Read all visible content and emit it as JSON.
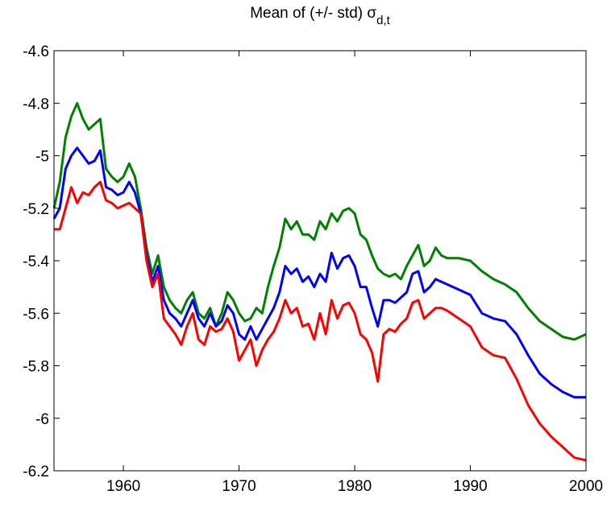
{
  "chart_data": {
    "type": "line",
    "title": "Mean of (+/- std) σ",
    "title_subscript": "d,t",
    "xlim": [
      1954,
      2000
    ],
    "ylim": [
      -6.2,
      -4.6
    ],
    "xticks": [
      1960,
      1970,
      1980,
      1990,
      2000
    ],
    "yticks": [
      -4.6,
      -4.8,
      -5,
      -5.2,
      -5.4,
      -5.6,
      -5.8,
      -6,
      -6.2
    ],
    "x": [
      1954,
      1954.5,
      1955,
      1955.5,
      1956,
      1956.5,
      1957,
      1957.5,
      1958,
      1958.5,
      1959,
      1959.5,
      1960,
      1960.5,
      1961,
      1961.5,
      1962,
      1962.5,
      1963,
      1963.5,
      1964,
      1964.5,
      1965,
      1965.5,
      1966,
      1966.5,
      1967,
      1967.5,
      1968,
      1968.5,
      1969,
      1969.5,
      1970,
      1970.5,
      1971,
      1971.5,
      1972,
      1972.5,
      1973,
      1973.5,
      1974,
      1974.5,
      1975,
      1975.5,
      1976,
      1976.5,
      1977,
      1977.5,
      1978,
      1978.5,
      1979,
      1979.5,
      1980,
      1980.5,
      1981,
      1981.5,
      1982,
      1982.5,
      1983,
      1983.5,
      1984,
      1984.5,
      1985,
      1985.5,
      1986,
      1986.5,
      1987,
      1987.5,
      1988,
      1989,
      1990,
      1991,
      1992,
      1993,
      1994,
      1995,
      1996,
      1997,
      1998,
      1999,
      2000
    ],
    "series": [
      {
        "color": "#008000",
        "values": [
          -5.2,
          -5.1,
          -4.93,
          -4.85,
          -4.8,
          -4.86,
          -4.9,
          -4.88,
          -4.86,
          -5.05,
          -5.08,
          -5.1,
          -5.08,
          -5.03,
          -5.08,
          -5.2,
          -5.35,
          -5.45,
          -5.38,
          -5.5,
          -5.55,
          -5.58,
          -5.6,
          -5.55,
          -5.52,
          -5.6,
          -5.62,
          -5.58,
          -5.65,
          -5.6,
          -5.52,
          -5.55,
          -5.6,
          -5.63,
          -5.62,
          -5.58,
          -5.6,
          -5.5,
          -5.42,
          -5.35,
          -5.24,
          -5.28,
          -5.25,
          -5.3,
          -5.3,
          -5.32,
          -5.25,
          -5.28,
          -5.22,
          -5.25,
          -5.21,
          -5.2,
          -5.22,
          -5.3,
          -5.32,
          -5.38,
          -5.43,
          -5.45,
          -5.46,
          -5.45,
          -5.47,
          -5.42,
          -5.38,
          -5.34,
          -5.42,
          -5.4,
          -5.35,
          -5.38,
          -5.39,
          -5.39,
          -5.4,
          -5.44,
          -5.47,
          -5.49,
          -5.52,
          -5.58,
          -5.63,
          -5.66,
          -5.69,
          -5.7,
          -5.68
        ]
      },
      {
        "color": "#0000ff",
        "values": [
          -5.24,
          -5.2,
          -5.05,
          -5.0,
          -4.97,
          -5.0,
          -5.03,
          -5.02,
          -4.98,
          -5.12,
          -5.13,
          -5.15,
          -5.14,
          -5.1,
          -5.14,
          -5.22,
          -5.38,
          -5.48,
          -5.42,
          -5.55,
          -5.6,
          -5.62,
          -5.65,
          -5.6,
          -5.55,
          -5.62,
          -5.65,
          -5.6,
          -5.65,
          -5.63,
          -5.57,
          -5.6,
          -5.68,
          -5.7,
          -5.65,
          -5.7,
          -5.66,
          -5.62,
          -5.58,
          -5.52,
          -5.42,
          -5.45,
          -5.43,
          -5.48,
          -5.46,
          -5.5,
          -5.45,
          -5.48,
          -5.37,
          -5.43,
          -5.39,
          -5.38,
          -5.42,
          -5.5,
          -5.5,
          -5.58,
          -5.65,
          -5.55,
          -5.55,
          -5.56,
          -5.54,
          -5.52,
          -5.45,
          -5.44,
          -5.52,
          -5.5,
          -5.47,
          -5.48,
          -5.49,
          -5.51,
          -5.53,
          -5.6,
          -5.62,
          -5.63,
          -5.68,
          -5.76,
          -5.83,
          -5.87,
          -5.9,
          -5.92,
          -5.92
        ]
      },
      {
        "color": "#ff0000",
        "values": [
          -5.28,
          -5.28,
          -5.2,
          -5.12,
          -5.18,
          -5.14,
          -5.15,
          -5.12,
          -5.1,
          -5.17,
          -5.18,
          -5.2,
          -5.19,
          -5.18,
          -5.2,
          -5.22,
          -5.4,
          -5.5,
          -5.45,
          -5.62,
          -5.65,
          -5.68,
          -5.72,
          -5.65,
          -5.6,
          -5.7,
          -5.72,
          -5.65,
          -5.67,
          -5.66,
          -5.62,
          -5.67,
          -5.78,
          -5.74,
          -5.7,
          -5.8,
          -5.74,
          -5.7,
          -5.67,
          -5.62,
          -5.55,
          -5.6,
          -5.58,
          -5.65,
          -5.64,
          -5.7,
          -5.6,
          -5.68,
          -5.55,
          -5.62,
          -5.57,
          -5.56,
          -5.6,
          -5.68,
          -5.7,
          -5.75,
          -5.86,
          -5.68,
          -5.66,
          -5.67,
          -5.64,
          -5.62,
          -5.56,
          -5.55,
          -5.62,
          -5.6,
          -5.58,
          -5.58,
          -5.59,
          -5.62,
          -5.65,
          -5.73,
          -5.76,
          -5.77,
          -5.85,
          -5.95,
          -6.02,
          -6.07,
          -6.11,
          -6.15,
          -6.16
        ]
      }
    ]
  }
}
